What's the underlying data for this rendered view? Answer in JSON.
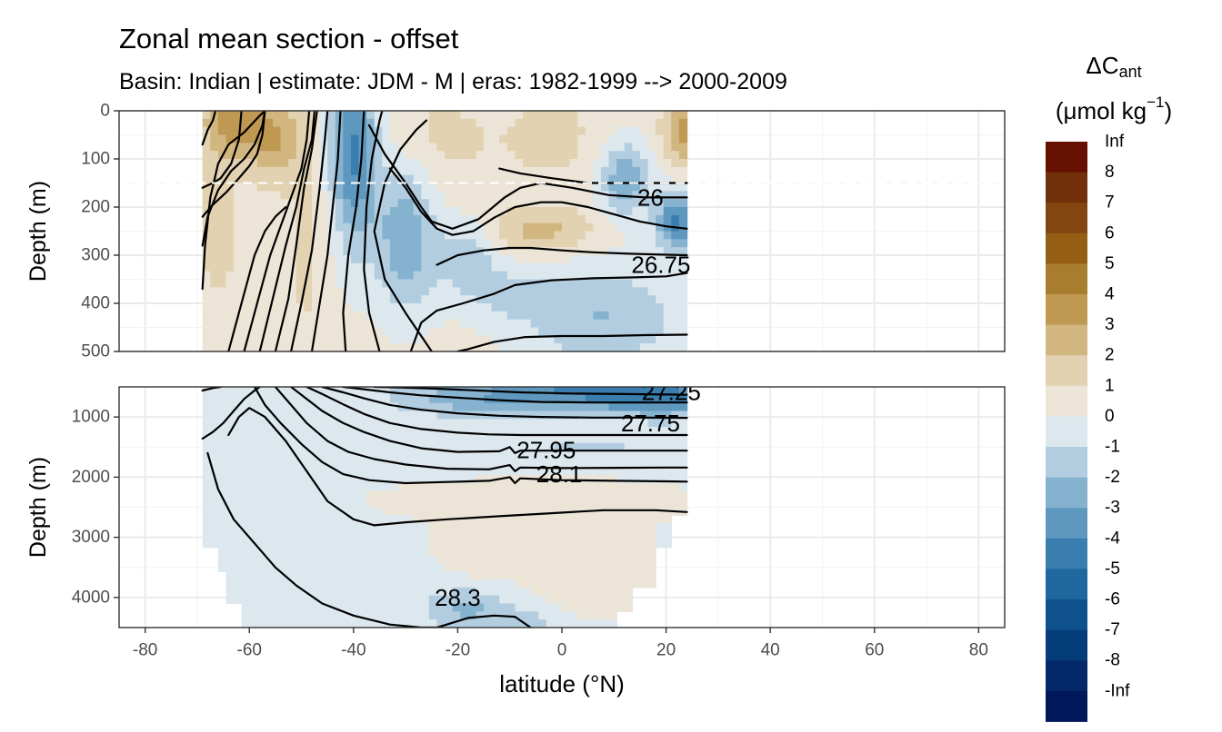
{
  "title": "Zonal mean section - offset",
  "subtitle": "Basin: Indian | estimate: JDM - M | eras: 1982-1999 --> 2000-2009",
  "chart_data": {
    "type": "heatmap",
    "x_axis": {
      "label": "latitude (°N)",
      "range": [
        -85,
        85
      ],
      "ticks": [
        -80,
        -60,
        -40,
        -20,
        0,
        20,
        40,
        60,
        80
      ],
      "tick_labels": [
        "-80",
        "-60",
        "-40",
        "-20",
        "0",
        "20",
        "40",
        "60",
        "80"
      ]
    },
    "panels": [
      {
        "name": "upper",
        "ylabel": "Depth (m)",
        "depth_range": [
          0,
          500
        ],
        "y_ticks": [
          0,
          100,
          200,
          300,
          400,
          500
        ],
        "y_tick_labels": [
          "0",
          "100",
          "200",
          "300",
          "400",
          "500"
        ],
        "dashed_line_depth": 150,
        "data_lat_range": [
          -69,
          24
        ],
        "contour_labels": [
          {
            "text": "26",
            "lat": 17,
            "depth": 180
          },
          {
            "text": "26.75",
            "lat": 19,
            "depth": 320
          }
        ]
      },
      {
        "name": "lower",
        "ylabel": "Depth (m)",
        "depth_range": [
          500,
          4500
        ],
        "y_ticks": [
          1000,
          2000,
          3000,
          4000
        ],
        "y_tick_labels": [
          "1000",
          "2000",
          "3000",
          "4000"
        ],
        "data_lat_range": [
          -69,
          24
        ],
        "contour_labels": [
          {
            "text": "27.25",
            "lat": 21,
            "depth": 580
          },
          {
            "text": "27.75",
            "lat": 17,
            "depth": 1100
          },
          {
            "text": "27.95",
            "lat": -3,
            "depth": 1550
          },
          {
            "text": "28.1",
            "lat": -0.5,
            "depth": 1950
          },
          {
            "text": "28.3",
            "lat": -20,
            "depth": 4000
          }
        ]
      }
    ],
    "legend": {
      "title": "ΔC",
      "title_sub": "ant",
      "unit": "(μmol kg",
      "unit_sup": "−1",
      "unit_close": ")",
      "placement": "right",
      "levels": [
        "Inf",
        "8",
        "7",
        "6",
        "5",
        "4",
        "3",
        "2",
        "1",
        "0",
        "-1",
        "-2",
        "-3",
        "-4",
        "-5",
        "-6",
        "-7",
        "-8",
        "-Inf"
      ],
      "colors": [
        "#651000",
        "#72300a",
        "#824710",
        "#945e14",
        "#a97d2e",
        "#bf9852",
        "#d2b680",
        "#e2d2b2",
        "#ece4d6",
        "#dce8ee",
        "#b3cde0",
        "#85b3cf",
        "#5f98bf",
        "#3a7eaf",
        "#1f679f",
        "#0e518d",
        "#053d7b",
        "#03296a",
        "#01185a"
      ]
    }
  }
}
